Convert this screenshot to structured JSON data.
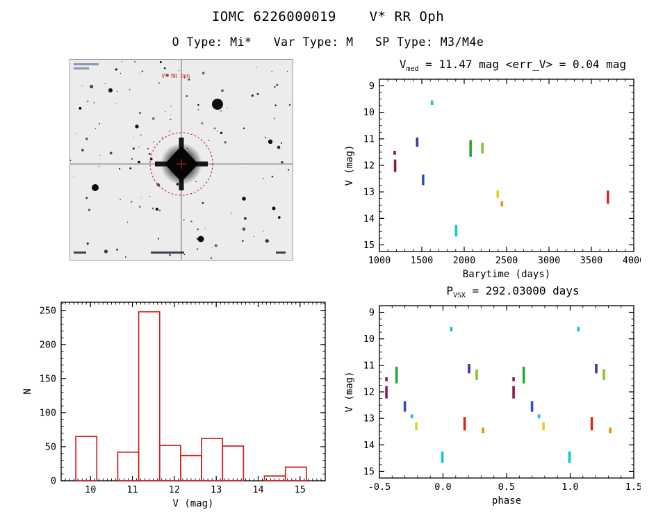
{
  "page": {
    "title": "IOMC 6226000019    V* RR Oph",
    "subtitle": "O Type: Mi*   Var Type: M   SP Type: M3/M4e"
  },
  "palette": {
    "maroon": "#8C1A50",
    "indigo": "#45309E",
    "blue": "#2850C8",
    "cyan": "#12C8C8",
    "green": "#28A832",
    "lightgreen": "#7DC832",
    "yellow": "#E2D215",
    "orange": "#F08C0A",
    "red": "#DC2810",
    "hist": "#CC2222",
    "axis": "#000000"
  },
  "finding_chart": {
    "label": "V* RR Oph",
    "marker_color": "#CC2222"
  },
  "chart_data": [
    {
      "id": "lightcurve",
      "type": "scatter",
      "title": {
        "pre": "V",
        "sub": "med",
        "rest": " = 11.47 mag <err_V> = 0.04 mag"
      },
      "xlabel": "Barytime (days)",
      "ylabel": "V (mag)",
      "xlim": [
        1000,
        4000
      ],
      "ylim": [
        8.75,
        15.25
      ],
      "inverted_y": true,
      "xticks": [
        1000,
        1500,
        2000,
        2500,
        3000,
        3500,
        4000
      ],
      "yticks": [
        9,
        10,
        11,
        12,
        13,
        14,
        15
      ],
      "xminor": 100,
      "yminor": 0.25,
      "segments": [
        {
          "x": 1180,
          "v": [
            11.45,
            11.6
          ],
          "color": "maroon"
        },
        {
          "x": 1185,
          "v": [
            11.78,
            12.25
          ],
          "color": "maroon"
        },
        {
          "x": 1445,
          "v": [
            10.95,
            11.3
          ],
          "color": "indigo"
        },
        {
          "x": 1515,
          "v": [
            12.35,
            12.75
          ],
          "color": "blue"
        },
        {
          "x": 1620,
          "v": [
            9.55,
            9.72
          ],
          "color": "cyan"
        },
        {
          "x": 1905,
          "v": [
            14.25,
            14.68
          ],
          "color": "cyan"
        },
        {
          "x": 2075,
          "v": [
            11.05,
            11.68
          ],
          "color": "green"
        },
        {
          "x": 2215,
          "v": [
            11.15,
            11.55
          ],
          "color": "lightgreen"
        },
        {
          "x": 2395,
          "v": [
            12.95,
            13.22
          ],
          "color": "yellow"
        },
        {
          "x": 2445,
          "v": [
            13.35,
            13.55
          ],
          "color": "orange"
        },
        {
          "x": 3695,
          "v": [
            12.95,
            13.45
          ],
          "color": "red"
        }
      ]
    },
    {
      "id": "histogram",
      "type": "bar",
      "xlabel": "V (mag)",
      "ylabel": "N",
      "xlim": [
        9.3,
        15.6
      ],
      "ylim": [
        0,
        262
      ],
      "inverted_y": false,
      "xticks": [
        10,
        11,
        12,
        13,
        14,
        15
      ],
      "yticks": [
        0,
        50,
        100,
        150,
        200,
        250
      ],
      "xminor": 0.1,
      "yminor": 10,
      "bin_start": 9.65,
      "bin_width": 0.5,
      "values": [
        65,
        0,
        42,
        248,
        52,
        37,
        62,
        51,
        0,
        7,
        20
      ]
    },
    {
      "id": "phase",
      "type": "scatter",
      "fold": true,
      "title": {
        "pre": "P",
        "sub": "VSX",
        "rest": " = 292.03000 days"
      },
      "xlabel": "phase",
      "ylabel": "V (mag)",
      "xlim": [
        -0.5,
        1.5
      ],
      "ylim": [
        8.75,
        15.25
      ],
      "inverted_y": true,
      "xticks": [
        -0.5,
        0,
        0.5,
        1,
        1.5
      ],
      "xticklabels": [
        "-0.5",
        "0.0",
        "0.5",
        "1.0",
        "1.5"
      ],
      "yticks": [
        9,
        10,
        11,
        12,
        13,
        14,
        15
      ],
      "xminor": 0.1,
      "yminor": 0.25,
      "segments": [
        {
          "p": 0.555,
          "v": [
            11.45,
            11.6
          ],
          "color": "maroon"
        },
        {
          "p": 0.555,
          "v": [
            11.78,
            12.25
          ],
          "color": "maroon"
        },
        {
          "p": 0.205,
          "v": [
            10.95,
            11.3
          ],
          "color": "indigo"
        },
        {
          "p": 0.7,
          "v": [
            12.35,
            12.75
          ],
          "color": "blue"
        },
        {
          "p": 0.065,
          "v": [
            9.55,
            9.72
          ],
          "color": "cyan"
        },
        {
          "p": 0.995,
          "v": [
            14.25,
            14.68
          ],
          "color": "cyan"
        },
        {
          "p": 0.635,
          "v": [
            11.05,
            11.68
          ],
          "color": "green"
        },
        {
          "p": 0.265,
          "v": [
            11.15,
            11.55
          ],
          "color": "lightgreen"
        },
        {
          "p": 0.755,
          "v": [
            12.85,
            13.0
          ],
          "color": "cyan"
        },
        {
          "p": 0.79,
          "v": [
            13.15,
            13.45
          ],
          "color": "yellow"
        },
        {
          "p": 0.315,
          "v": [
            13.35,
            13.55
          ],
          "color": "orange"
        },
        {
          "p": 0.17,
          "v": [
            12.95,
            13.45
          ],
          "color": "red"
        }
      ]
    }
  ]
}
